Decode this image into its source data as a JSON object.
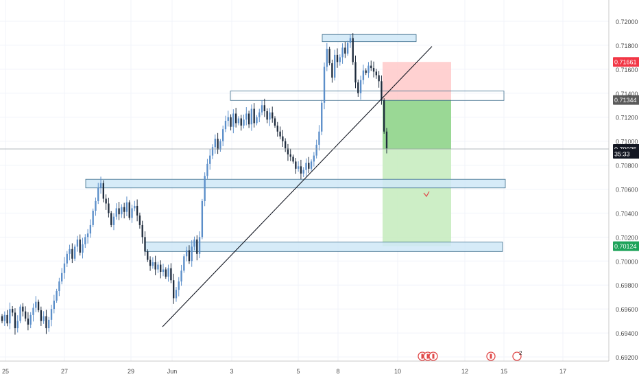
{
  "colors": {
    "background": "#ffffff",
    "grid": "#f0f3fa",
    "axis_text": "#4a4a4a",
    "candle_up": "#5b8ec9",
    "candle_down": "#1f2c3d",
    "zone_fill": "#cfe8f7",
    "zone_border": "#3a6b8a",
    "stop_fill": "#ffcccc",
    "target_fill": "#c8ecc0",
    "target_fill_strong": "#8fd48a",
    "ask_label": "#f23645",
    "current_label": "#131722",
    "entry_label": "#5a5a5a",
    "target_label": "#1ea35a",
    "event_icon": "#e04a4a"
  },
  "chart_data": {
    "type": "candlestick",
    "symbol_pair": "",
    "ylim": [
      0.6915,
      0.7225
    ],
    "y_ticks": [
      "0.72000",
      "0.71800",
      "0.71600",
      "0.71400",
      "0.71200",
      "0.71000",
      "0.70800",
      "0.70600",
      "0.70400",
      "0.70200",
      "0.70000",
      "0.69800",
      "0.69600",
      "0.69400",
      "0.69200"
    ],
    "x_ticks": [
      "25",
      "27",
      "29",
      "Jun",
      "3",
      "5",
      "8",
      "10",
      "12",
      "15",
      "17"
    ],
    "grid": true,
    "price_labels": [
      {
        "name": "ask",
        "text": "0.71661",
        "value": 0.71661
      },
      {
        "name": "entry",
        "text": "0.71344",
        "value": 0.71344
      },
      {
        "name": "current",
        "text": "0.70935",
        "value": 0.70935
      },
      {
        "name": "countdown",
        "text": "35:33",
        "value": 0.70895
      },
      {
        "name": "target",
        "text": "0.70124",
        "value": 0.70124
      }
    ],
    "current_price": 0.70935,
    "series_close": [
      0.695,
      0.6955,
      0.6948,
      0.696,
      0.6957,
      0.6944,
      0.695,
      0.6962,
      0.6958,
      0.6952,
      0.6947,
      0.6955,
      0.6961,
      0.6966,
      0.6959,
      0.695,
      0.6954,
      0.6944,
      0.6951,
      0.696,
      0.6967,
      0.6975,
      0.6983,
      0.699,
      0.6998,
      0.7006,
      0.701,
      0.7002,
      0.7012,
      0.7018,
      0.7007,
      0.7014,
      0.702,
      0.7023,
      0.703,
      0.7042,
      0.705,
      0.7061,
      0.7065,
      0.7052,
      0.7048,
      0.704,
      0.703,
      0.7037,
      0.7044,
      0.7039,
      0.7045,
      0.7041,
      0.7049,
      0.7036,
      0.7044,
      0.7046,
      0.7038,
      0.703,
      0.702,
      0.7008,
      0.7001,
      0.6996,
      0.6999,
      0.6993,
      0.6997,
      0.6991,
      0.6993,
      0.6987,
      0.6994,
      0.6984,
      0.6969,
      0.6976,
      0.6983,
      0.6992,
      0.7004,
      0.7009,
      0.7,
      0.7012,
      0.7018,
      0.7006,
      0.702,
      0.705,
      0.7071,
      0.7081,
      0.7088,
      0.7095,
      0.7102,
      0.7093,
      0.71,
      0.711,
      0.7117,
      0.712,
      0.7112,
      0.7123,
      0.7115,
      0.7119,
      0.7113,
      0.7118,
      0.7123,
      0.7114,
      0.7127,
      0.7115,
      0.712,
      0.7124,
      0.713,
      0.7125,
      0.7118,
      0.7124,
      0.7119,
      0.7113,
      0.7108,
      0.7104,
      0.71,
      0.7094,
      0.7089,
      0.7087,
      0.7083,
      0.7077,
      0.7079,
      0.7073,
      0.7076,
      0.7082,
      0.7077,
      0.7083,
      0.7088,
      0.7097,
      0.7108,
      0.7132,
      0.7162,
      0.7177,
      0.7165,
      0.7153,
      0.7172,
      0.7166,
      0.717,
      0.7178,
      0.7173,
      0.7182,
      0.7186,
      0.7166,
      0.7149,
      0.714,
      0.7151,
      0.7159,
      0.7157,
      0.7163,
      0.7161,
      0.7158,
      0.7155,
      0.715,
      0.7134,
      0.7108,
      0.7094
    ]
  }
}
